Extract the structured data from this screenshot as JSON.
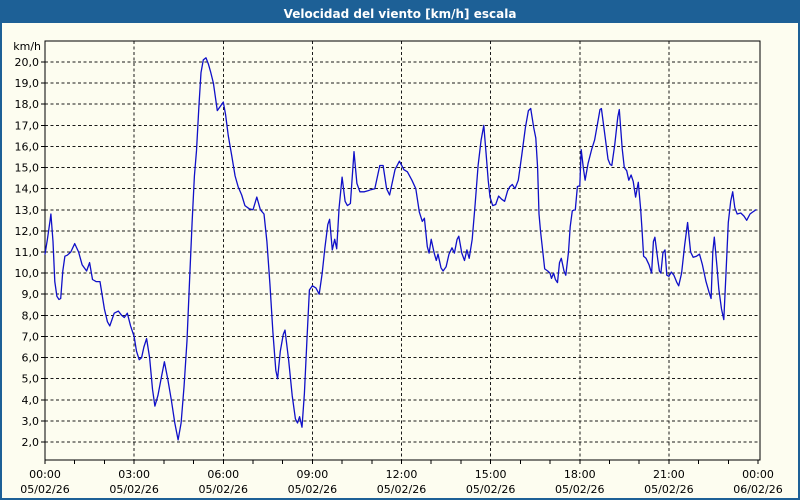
{
  "window": {
    "title": "Velocidad del viento [km/h] escala"
  },
  "colors": {
    "title_bar_bg": "#1d6096",
    "title_text": "#ffffff",
    "window_border": "#1d6096",
    "content_bg": "#fdfdf0",
    "grid_line": "#1a1a1a",
    "axis_line": "#000000",
    "line": "#1010c8",
    "label_text": "#000000"
  },
  "chart_data": {
    "type": "line",
    "title": "Velocidad del viento [km/h] escala",
    "xlabel": "",
    "ylabel": "km/h",
    "unit_label": "km/h",
    "grid": true,
    "legend_position": "none",
    "y_axis": {
      "min": 2,
      "max": 20,
      "step": 1,
      "display_min": 1.1,
      "display_max": 21.0
    },
    "y_tick_labels": [
      "2,0",
      "3,0",
      "4,0",
      "5,0",
      "6,0",
      "7,0",
      "8,0",
      "9,0",
      "10,0",
      "11,0",
      "12,0",
      "13,0",
      "14,0",
      "15,0",
      "16,0",
      "17,0",
      "18,0",
      "19,0",
      "20,0"
    ],
    "x_axis": {
      "start_hour": 0,
      "end_hour": 24,
      "major_tick_every_hours": 3,
      "minor_tick_every_hours": 1
    },
    "x_ticks": [
      {
        "time": "00:00",
        "date": "05/02/26"
      },
      {
        "time": "03:00",
        "date": "05/02/26"
      },
      {
        "time": "06:00",
        "date": "05/02/26"
      },
      {
        "time": "09:00",
        "date": "05/02/26"
      },
      {
        "time": "12:00",
        "date": "05/02/26"
      },
      {
        "time": "15:00",
        "date": "05/02/26"
      },
      {
        "time": "18:00",
        "date": "05/02/26"
      },
      {
        "time": "21:00",
        "date": "05/02/26"
      },
      {
        "time": "00:00",
        "date": "06/02/26"
      }
    ],
    "series": [
      {
        "name": "Velocidad del viento [km/h]",
        "color": "#1010c8",
        "points_hour_kmh": [
          [
            0.0,
            10.9
          ],
          [
            0.08,
            11.6
          ],
          [
            0.17,
            12.5
          ],
          [
            0.2,
            12.8
          ],
          [
            0.27,
            11.5
          ],
          [
            0.33,
            9.6
          ],
          [
            0.4,
            8.9
          ],
          [
            0.47,
            8.75
          ],
          [
            0.53,
            8.8
          ],
          [
            0.6,
            10.1
          ],
          [
            0.67,
            10.8
          ],
          [
            0.75,
            10.85
          ],
          [
            0.87,
            11.0
          ],
          [
            1.0,
            11.4
          ],
          [
            1.13,
            11.0
          ],
          [
            1.25,
            10.4
          ],
          [
            1.4,
            10.1
          ],
          [
            1.5,
            10.5
          ],
          [
            1.6,
            9.7
          ],
          [
            1.72,
            9.6
          ],
          [
            1.85,
            9.6
          ],
          [
            2.0,
            8.3
          ],
          [
            2.1,
            7.7
          ],
          [
            2.18,
            7.5
          ],
          [
            2.33,
            8.1
          ],
          [
            2.47,
            8.2
          ],
          [
            2.58,
            8.0
          ],
          [
            2.67,
            7.9
          ],
          [
            2.77,
            8.1
          ],
          [
            2.88,
            7.5
          ],
          [
            3.0,
            7.0
          ],
          [
            3.08,
            6.3
          ],
          [
            3.17,
            5.9
          ],
          [
            3.25,
            6.0
          ],
          [
            3.33,
            6.5
          ],
          [
            3.42,
            6.9
          ],
          [
            3.52,
            6.0
          ],
          [
            3.62,
            4.5
          ],
          [
            3.7,
            3.7
          ],
          [
            3.8,
            4.2
          ],
          [
            3.92,
            5.1
          ],
          [
            4.02,
            5.8
          ],
          [
            4.13,
            5.0
          ],
          [
            4.25,
            4.0
          ],
          [
            4.37,
            2.9
          ],
          [
            4.48,
            2.1
          ],
          [
            4.58,
            2.9
          ],
          [
            4.68,
            4.6
          ],
          [
            4.78,
            6.8
          ],
          [
            4.87,
            9.8
          ],
          [
            4.95,
            12.4
          ],
          [
            5.03,
            14.6
          ],
          [
            5.1,
            15.8
          ],
          [
            5.18,
            17.9
          ],
          [
            5.25,
            19.5
          ],
          [
            5.33,
            20.1
          ],
          [
            5.42,
            20.2
          ],
          [
            5.5,
            19.9
          ],
          [
            5.58,
            19.5
          ],
          [
            5.67,
            19.0
          ],
          [
            5.73,
            18.4
          ],
          [
            5.8,
            17.7
          ],
          [
            5.9,
            17.9
          ],
          [
            6.0,
            18.1
          ],
          [
            6.08,
            17.5
          ],
          [
            6.17,
            16.5
          ],
          [
            6.28,
            15.6
          ],
          [
            6.4,
            14.6
          ],
          [
            6.5,
            14.1
          ],
          [
            6.62,
            13.7
          ],
          [
            6.73,
            13.2
          ],
          [
            6.87,
            13.05
          ],
          [
            7.0,
            13.0
          ],
          [
            7.13,
            13.6
          ],
          [
            7.25,
            13.0
          ],
          [
            7.37,
            12.8
          ],
          [
            7.47,
            11.5
          ],
          [
            7.57,
            9.5
          ],
          [
            7.67,
            7.2
          ],
          [
            7.77,
            5.4
          ],
          [
            7.83,
            5.0
          ],
          [
            7.92,
            6.3
          ],
          [
            8.02,
            7.1
          ],
          [
            8.08,
            7.3
          ],
          [
            8.2,
            5.9
          ],
          [
            8.32,
            4.2
          ],
          [
            8.43,
            3.1
          ],
          [
            8.5,
            2.9
          ],
          [
            8.57,
            3.2
          ],
          [
            8.65,
            2.7
          ],
          [
            8.73,
            4.3
          ],
          [
            8.82,
            6.9
          ],
          [
            8.9,
            9.2
          ],
          [
            9.0,
            9.4
          ],
          [
            9.12,
            9.3
          ],
          [
            9.23,
            9.0
          ],
          [
            9.33,
            10.0
          ],
          [
            9.42,
            11.2
          ],
          [
            9.52,
            12.3
          ],
          [
            9.58,
            12.55
          ],
          [
            9.67,
            11.1
          ],
          [
            9.75,
            11.6
          ],
          [
            9.82,
            11.15
          ],
          [
            9.9,
            13.1
          ],
          [
            10.0,
            14.55
          ],
          [
            10.1,
            13.4
          ],
          [
            10.18,
            13.2
          ],
          [
            10.28,
            13.3
          ],
          [
            10.4,
            15.75
          ],
          [
            10.5,
            14.25
          ],
          [
            10.6,
            13.85
          ],
          [
            10.75,
            13.85
          ],
          [
            10.87,
            13.9
          ],
          [
            10.97,
            13.95
          ],
          [
            11.1,
            14.0
          ],
          [
            11.27,
            15.1
          ],
          [
            11.38,
            15.1
          ],
          [
            11.5,
            14.0
          ],
          [
            11.6,
            13.7
          ],
          [
            11.78,
            14.9
          ],
          [
            11.93,
            15.3
          ],
          [
            12.08,
            14.9
          ],
          [
            12.2,
            14.8
          ],
          [
            12.35,
            14.4
          ],
          [
            12.48,
            14.0
          ],
          [
            12.6,
            12.9
          ],
          [
            12.7,
            12.45
          ],
          [
            12.77,
            12.6
          ],
          [
            12.87,
            11.25
          ],
          [
            12.93,
            10.95
          ],
          [
            13.0,
            11.6
          ],
          [
            13.1,
            10.95
          ],
          [
            13.17,
            10.6
          ],
          [
            13.23,
            10.9
          ],
          [
            13.33,
            10.25
          ],
          [
            13.4,
            10.1
          ],
          [
            13.5,
            10.3
          ],
          [
            13.6,
            10.9
          ],
          [
            13.7,
            11.2
          ],
          [
            13.78,
            10.95
          ],
          [
            13.87,
            11.6
          ],
          [
            13.93,
            11.75
          ],
          [
            14.03,
            10.95
          ],
          [
            14.12,
            10.6
          ],
          [
            14.2,
            11.1
          ],
          [
            14.28,
            10.7
          ],
          [
            14.38,
            11.6
          ],
          [
            14.48,
            13.3
          ],
          [
            14.58,
            15.1
          ],
          [
            14.68,
            16.3
          ],
          [
            14.77,
            17.0
          ],
          [
            14.85,
            15.6
          ],
          [
            14.92,
            14.4
          ],
          [
            14.98,
            13.6
          ],
          [
            15.07,
            13.2
          ],
          [
            15.17,
            13.25
          ],
          [
            15.27,
            13.65
          ],
          [
            15.37,
            13.5
          ],
          [
            15.47,
            13.4
          ],
          [
            15.57,
            13.9
          ],
          [
            15.65,
            14.1
          ],
          [
            15.73,
            14.2
          ],
          [
            15.82,
            14.0
          ],
          [
            15.93,
            14.4
          ],
          [
            16.05,
            15.6
          ],
          [
            16.17,
            16.9
          ],
          [
            16.27,
            17.7
          ],
          [
            16.35,
            17.8
          ],
          [
            16.45,
            16.9
          ],
          [
            16.52,
            16.4
          ],
          [
            16.58,
            15.0
          ],
          [
            16.63,
            12.8
          ],
          [
            16.68,
            12.0
          ],
          [
            16.75,
            11.1
          ],
          [
            16.82,
            10.2
          ],
          [
            16.92,
            10.1
          ],
          [
            17.0,
            10.0
          ],
          [
            17.05,
            9.75
          ],
          [
            17.12,
            10.0
          ],
          [
            17.18,
            9.7
          ],
          [
            17.25,
            9.55
          ],
          [
            17.32,
            10.5
          ],
          [
            17.38,
            10.7
          ],
          [
            17.47,
            10.1
          ],
          [
            17.53,
            9.9
          ],
          [
            17.62,
            11.0
          ],
          [
            17.68,
            12.2
          ],
          [
            17.75,
            12.95
          ],
          [
            17.85,
            13.0
          ],
          [
            17.92,
            14.1
          ],
          [
            18.0,
            14.15
          ],
          [
            18.05,
            15.85
          ],
          [
            18.12,
            15.0
          ],
          [
            18.18,
            14.4
          ],
          [
            18.28,
            15.2
          ],
          [
            18.4,
            15.85
          ],
          [
            18.5,
            16.3
          ],
          [
            18.6,
            17.1
          ],
          [
            18.68,
            17.75
          ],
          [
            18.73,
            17.8
          ],
          [
            18.85,
            16.5
          ],
          [
            18.95,
            15.4
          ],
          [
            19.02,
            15.15
          ],
          [
            19.08,
            15.1
          ],
          [
            19.18,
            16.1
          ],
          [
            19.28,
            17.4
          ],
          [
            19.33,
            17.75
          ],
          [
            19.43,
            15.9
          ],
          [
            19.5,
            15.0
          ],
          [
            19.58,
            14.85
          ],
          [
            19.65,
            14.4
          ],
          [
            19.73,
            14.65
          ],
          [
            19.8,
            14.35
          ],
          [
            19.88,
            13.6
          ],
          [
            19.97,
            14.3
          ],
          [
            20.05,
            13.0
          ],
          [
            20.1,
            12.0
          ],
          [
            20.15,
            10.8
          ],
          [
            20.23,
            10.7
          ],
          [
            20.33,
            10.4
          ],
          [
            20.42,
            10.0
          ],
          [
            20.48,
            11.5
          ],
          [
            20.53,
            11.7
          ],
          [
            20.62,
            10.7
          ],
          [
            20.68,
            10.1
          ],
          [
            20.73,
            10.0
          ],
          [
            20.8,
            10.95
          ],
          [
            20.87,
            11.1
          ],
          [
            20.93,
            9.9
          ],
          [
            21.0,
            9.85
          ],
          [
            21.08,
            10.05
          ],
          [
            21.17,
            9.9
          ],
          [
            21.27,
            9.55
          ],
          [
            21.33,
            9.4
          ],
          [
            21.43,
            10.0
          ],
          [
            21.53,
            11.3
          ],
          [
            21.63,
            12.4
          ],
          [
            21.73,
            11.0
          ],
          [
            21.82,
            10.75
          ],
          [
            21.93,
            10.8
          ],
          [
            22.03,
            10.9
          ],
          [
            22.13,
            10.4
          ],
          [
            22.25,
            9.6
          ],
          [
            22.35,
            9.1
          ],
          [
            22.42,
            8.8
          ],
          [
            22.48,
            11.0
          ],
          [
            22.53,
            11.7
          ],
          [
            22.62,
            10.3
          ],
          [
            22.68,
            9.25
          ],
          [
            22.77,
            8.3
          ],
          [
            22.85,
            7.8
          ],
          [
            22.92,
            9.9
          ],
          [
            23.0,
            12.4
          ],
          [
            23.08,
            13.4
          ],
          [
            23.15,
            13.85
          ],
          [
            23.22,
            13.1
          ],
          [
            23.3,
            12.8
          ],
          [
            23.42,
            12.85
          ],
          [
            23.53,
            12.7
          ],
          [
            23.62,
            12.5
          ],
          [
            23.73,
            12.8
          ],
          [
            23.83,
            12.9
          ],
          [
            23.93,
            13.0
          ]
        ]
      }
    ]
  }
}
